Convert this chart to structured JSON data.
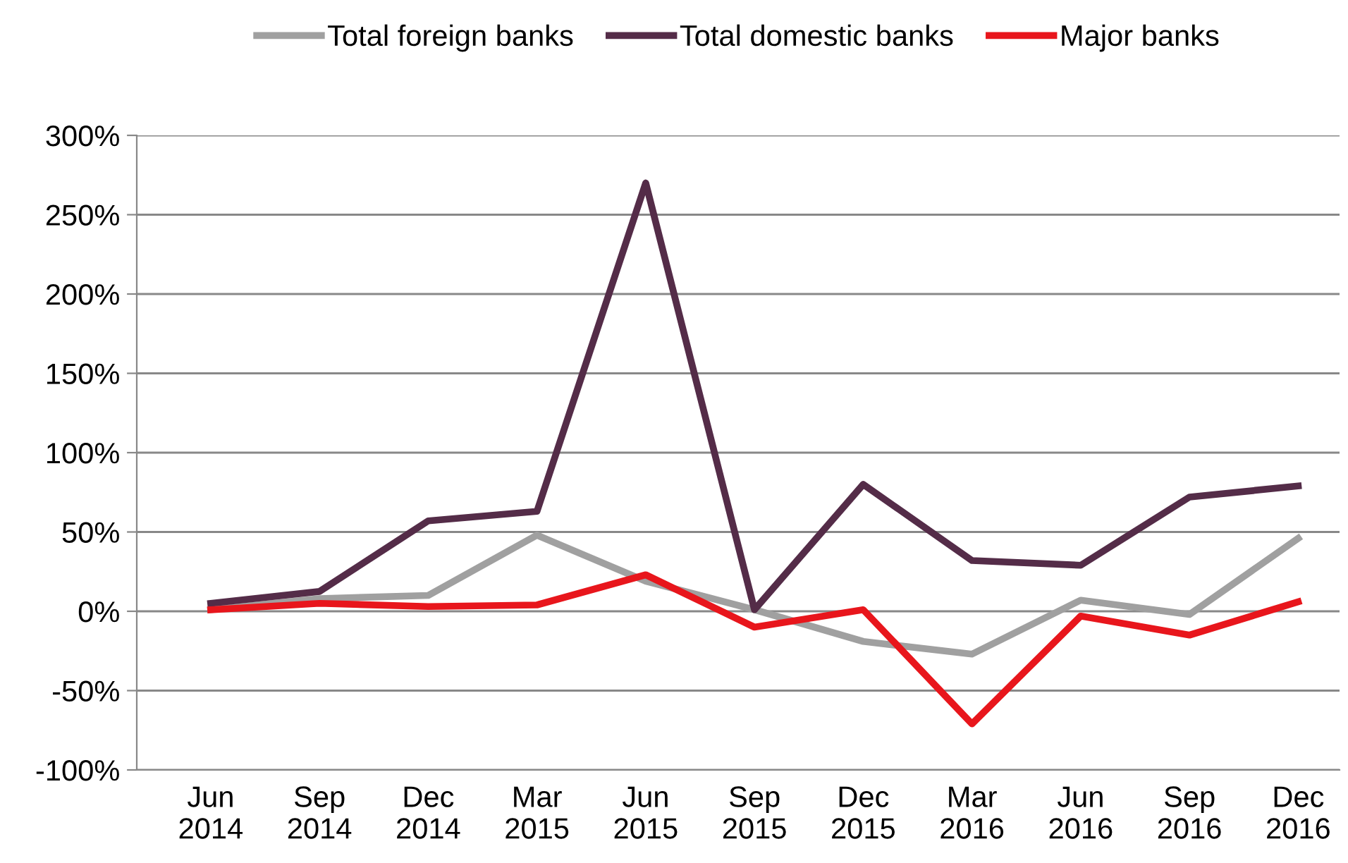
{
  "chart_data": {
    "type": "line",
    "categories": [
      "Jun\n2014",
      "Sep\n2014",
      "Dec\n2014",
      "Mar\n2015",
      "Jun\n2015",
      "Sep\n2015",
      "Dec\n2015",
      "Mar\n2016",
      "Jun\n2016",
      "Sep\n2016",
      "Dec\n2016"
    ],
    "series": [
      {
        "name": "Total foreign banks",
        "color": "#a0a0a0",
        "values": [
          1,
          8,
          10,
          48,
          19,
          1,
          -19,
          -27,
          7,
          -2,
          46
        ]
      },
      {
        "name": "Total domestic banks",
        "color": "#542c48",
        "values": [
          5,
          12.5,
          57,
          63,
          270,
          1,
          80,
          32,
          29,
          72,
          79
        ]
      },
      {
        "name": "Major banks",
        "color": "#e8161c",
        "values": [
          1,
          5,
          3,
          4,
          23,
          -10,
          1,
          -71,
          -3,
          -15,
          6
        ]
      }
    ],
    "ylim": [
      -100,
      300
    ],
    "yticks": [
      {
        "value": -100,
        "label": "-100%"
      },
      {
        "value": -50,
        "label": "-50%"
      },
      {
        "value": 0,
        "label": "0%"
      },
      {
        "value": 50,
        "label": "50%"
      },
      {
        "value": 100,
        "label": "100%"
      },
      {
        "value": 150,
        "label": "150%"
      },
      {
        "value": 200,
        "label": "200%"
      },
      {
        "value": 250,
        "label": "250%"
      },
      {
        "value": 300,
        "label": "300%"
      }
    ],
    "grid": "y",
    "legend": "top",
    "marker": "none",
    "line_style": "solid"
  }
}
